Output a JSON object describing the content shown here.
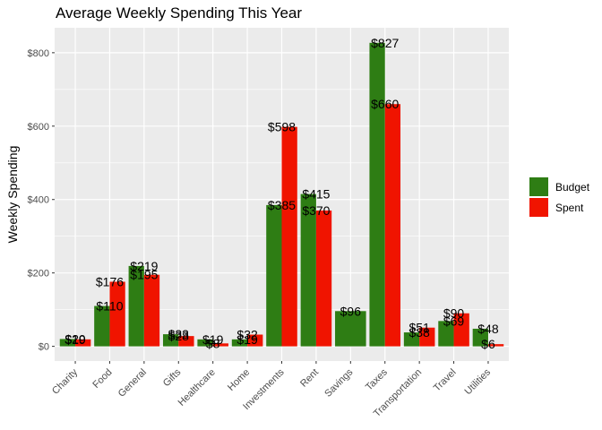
{
  "chart_data": {
    "type": "bar",
    "title": "Average Weekly Spending This Year",
    "xlabel": "",
    "ylabel": "Weekly Spending",
    "categories": [
      "Charity",
      "Food",
      "General",
      "Gifts",
      "Healthcare",
      "Home",
      "Investments",
      "Rent",
      "Savings",
      "Taxes",
      "Transportation",
      "Travel",
      "Utilities"
    ],
    "series": [
      {
        "name": "Budget",
        "color": "#2e7d14",
        "values": [
          20,
          110,
          219,
          33,
          19,
          19,
          385,
          415,
          96,
          827,
          38,
          69,
          48
        ],
        "labels": [
          "$20",
          "$110",
          "$219",
          "$33",
          "$19",
          "$19",
          "$385",
          "$415",
          "$96",
          "$827",
          "$38",
          "$69",
          "$48"
        ]
      },
      {
        "name": "Spent",
        "color": "#f01400",
        "values": [
          19,
          176,
          195,
          28,
          8,
          32,
          598,
          370,
          null,
          660,
          51,
          90,
          6
        ],
        "labels": [
          "$19",
          "$176",
          "$195",
          "$28",
          "$8",
          "$32",
          "$598",
          "$370",
          "",
          "$660",
          "$51",
          "$90",
          "$6"
        ]
      }
    ],
    "yticks": [
      0,
      200,
      400,
      600,
      800
    ],
    "ytick_labels": [
      "$0",
      "$200",
      "$400",
      "$600",
      "$800"
    ],
    "ylim": [
      -40,
      868
    ],
    "grid": true,
    "legend_position": "right",
    "panel_background": "#ebebeb",
    "grid_color": "#ffffff"
  }
}
